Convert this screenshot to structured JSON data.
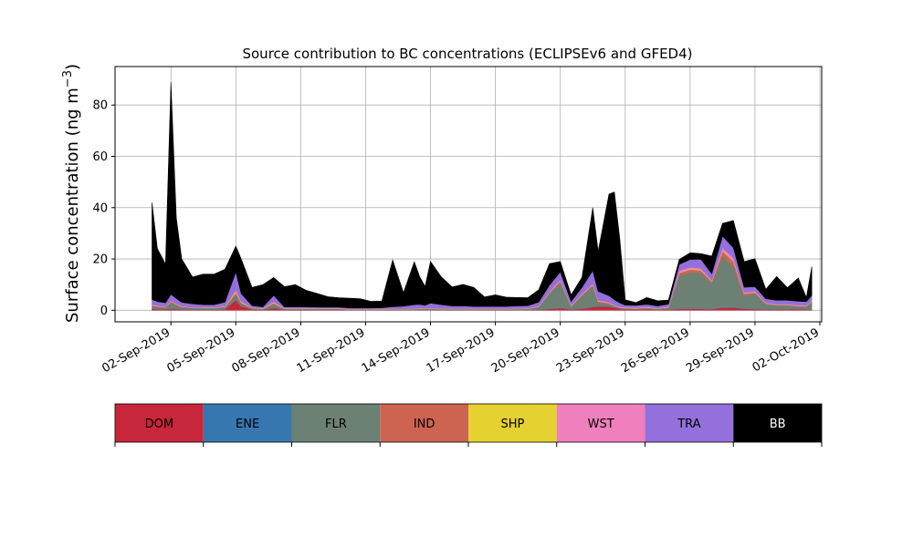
{
  "chart_data": {
    "type": "area",
    "stacked": true,
    "title": "Source contribution to BC concentrations (ECLIPSEv6 and GFED4)",
    "ylabel": "Surface concentration (ng m",
    "ylabel_superscript": "−3",
    "ylabel_close": ")",
    "xlabel": "",
    "xlim": [
      "2019-08-30T10:00",
      "2019-10-02T02:00"
    ],
    "ylim": [
      -4.5,
      95
    ],
    "xtick_values": [
      "2019-09-02",
      "2019-09-05",
      "2019-09-08",
      "2019-09-11",
      "2019-09-14",
      "2019-09-17",
      "2019-09-20",
      "2019-09-23",
      "2019-09-26",
      "2019-09-29",
      "2019-10-02"
    ],
    "xticks": [
      "02-Sep-2019",
      "05-Sep-2019",
      "08-Sep-2019",
      "11-Sep-2019",
      "14-Sep-2019",
      "17-Sep-2019",
      "20-Sep-2019",
      "23-Sep-2019",
      "26-Sep-2019",
      "29-Sep-2019",
      "02-Oct-2019"
    ],
    "yticks": [
      0,
      20,
      40,
      60,
      80
    ],
    "grid": true,
    "x": [
      "2019-09-01T03:00",
      "2019-09-01T09:00",
      "2019-09-01T18:00",
      "2019-09-02T00:00",
      "2019-09-02T06:00",
      "2019-09-02T12:00",
      "2019-09-03T00:00",
      "2019-09-03T12:00",
      "2019-09-04T00:00",
      "2019-09-04T12:00",
      "2019-09-05T00:00",
      "2019-09-05T06:00",
      "2019-09-05T18:00",
      "2019-09-06T06:00",
      "2019-09-06T18:00",
      "2019-09-07T06:00",
      "2019-09-07T18:00",
      "2019-09-08T06:00",
      "2019-09-08T18:00",
      "2019-09-09T06:00",
      "2019-09-09T18:00",
      "2019-09-10T06:00",
      "2019-09-10T18:00",
      "2019-09-11T06:00",
      "2019-09-11T18:00",
      "2019-09-12T06:00",
      "2019-09-12T18:00",
      "2019-09-13T06:00",
      "2019-09-13T12:00",
      "2019-09-13T18:00",
      "2019-09-14T00:00",
      "2019-09-14T12:00",
      "2019-09-15T00:00",
      "2019-09-15T12:00",
      "2019-09-16T00:00",
      "2019-09-16T12:00",
      "2019-09-17T00:00",
      "2019-09-17T12:00",
      "2019-09-18T00:00",
      "2019-09-18T12:00",
      "2019-09-19T00:00",
      "2019-09-19T12:00",
      "2019-09-20T00:00",
      "2019-09-20T12:00",
      "2019-09-21T00:00",
      "2019-09-21T12:00",
      "2019-09-21T18:00",
      "2019-09-22T06:00",
      "2019-09-22T12:00",
      "2019-09-22T18:00",
      "2019-09-23T00:00",
      "2019-09-23T12:00",
      "2019-09-24T00:00",
      "2019-09-24T12:00",
      "2019-09-25T00:00",
      "2019-09-25T12:00",
      "2019-09-26T00:00",
      "2019-09-26T12:00",
      "2019-09-27T00:00",
      "2019-09-27T12:00",
      "2019-09-28T00:00",
      "2019-09-28T12:00",
      "2019-09-29T00:00",
      "2019-09-29T12:00",
      "2019-09-30T00:00",
      "2019-09-30T12:00",
      "2019-10-01T00:00",
      "2019-10-01T09:00",
      "2019-10-01T15:00"
    ],
    "series": [
      {
        "name": "DOM",
        "color": "#c8263a",
        "values": [
          0.5,
          0.4,
          0.3,
          0.5,
          0.4,
          0.3,
          0.2,
          0.2,
          0.2,
          0.3,
          4.0,
          1.5,
          0.3,
          0.2,
          0.8,
          0.2,
          0.2,
          0.2,
          0.2,
          0.2,
          0.2,
          0.1,
          0.1,
          0.1,
          0.1,
          0.1,
          0.1,
          0.1,
          0.1,
          0.1,
          0.1,
          0.1,
          0.1,
          0.1,
          0.1,
          0.1,
          0.1,
          0.1,
          0.1,
          0.1,
          0.2,
          0.5,
          0.8,
          0.3,
          0.6,
          1.2,
          1.5,
          1.4,
          1.0,
          0.5,
          0.3,
          0.3,
          0.4,
          0.2,
          0.3,
          0.5,
          0.6,
          0.5,
          0.4,
          1.0,
          1.0,
          0.6,
          0.4,
          0.3,
          0.3,
          0.3,
          0.4,
          0.3,
          0.2
        ]
      },
      {
        "name": "ENE",
        "color": "#3777b0",
        "values": [
          0.1,
          0.1,
          0.1,
          0.1,
          0.1,
          0.1,
          0.1,
          0.1,
          0.1,
          0.1,
          0.1,
          0.1,
          0.1,
          0.1,
          0.1,
          0.1,
          0.1,
          0.1,
          0.1,
          0.1,
          0.1,
          0.1,
          0.1,
          0.1,
          0.1,
          0.1,
          0.1,
          0.1,
          0.1,
          0.1,
          0.1,
          0.1,
          0.1,
          0.1,
          0.1,
          0.1,
          0.1,
          0.1,
          0.1,
          0.1,
          0.1,
          0.1,
          0.1,
          0.1,
          0.1,
          0.1,
          0.1,
          0.1,
          0.1,
          0.1,
          0.1,
          0.1,
          0.1,
          0.1,
          0.1,
          0.1,
          0.1,
          0.1,
          0.1,
          0.1,
          0.1,
          0.1,
          0.1,
          0.1,
          0.1,
          0.1,
          0.1,
          0.1,
          0.1
        ]
      },
      {
        "name": "FLR",
        "color": "#6c8173",
        "values": [
          1.0,
          0.8,
          0.6,
          2.5,
          1.5,
          0.8,
          0.6,
          0.5,
          0.5,
          0.8,
          2.0,
          1.0,
          0.3,
          0.2,
          1.5,
          0.2,
          0.2,
          0.2,
          0.2,
          0.2,
          0.2,
          0.1,
          0.1,
          0.1,
          0.1,
          0.2,
          0.1,
          0.2,
          0.3,
          0.4,
          0.3,
          0.2,
          0.2,
          0.2,
          0.2,
          0.2,
          0.2,
          0.2,
          0.2,
          0.3,
          1.0,
          6.0,
          10.0,
          1.0,
          5.0,
          8.0,
          1.5,
          1.0,
          0.5,
          0.3,
          0.3,
          0.2,
          0.3,
          0.3,
          0.5,
          13.0,
          14.0,
          14.0,
          10.0,
          20.0,
          16.0,
          5.0,
          6.0,
          2.0,
          1.5,
          1.5,
          1.0,
          1.0,
          3.0
        ]
      },
      {
        "name": "IND",
        "color": "#cd6452",
        "values": [
          0.3,
          0.3,
          0.2,
          0.3,
          0.3,
          0.2,
          0.2,
          0.2,
          0.2,
          0.2,
          0.8,
          0.4,
          0.2,
          0.1,
          0.4,
          0.1,
          0.1,
          0.1,
          0.1,
          0.1,
          0.1,
          0.1,
          0.1,
          0.1,
          0.1,
          0.1,
          0.1,
          0.1,
          0.1,
          0.1,
          0.1,
          0.1,
          0.1,
          0.1,
          0.1,
          0.1,
          0.1,
          0.1,
          0.1,
          0.1,
          0.1,
          0.3,
          0.5,
          0.2,
          0.3,
          0.6,
          0.4,
          0.3,
          0.2,
          0.2,
          0.2,
          0.2,
          0.2,
          0.1,
          0.2,
          1.0,
          1.2,
          1.0,
          0.7,
          2.0,
          2.0,
          0.8,
          0.5,
          0.3,
          0.2,
          0.2,
          0.2,
          0.2,
          0.2
        ]
      },
      {
        "name": "SHP",
        "color": "#e5d12f",
        "values": [
          0.1,
          0.1,
          0.1,
          0.1,
          0.1,
          0.1,
          0.1,
          0.1,
          0.1,
          0.1,
          0.4,
          0.2,
          0.1,
          0.1,
          0.2,
          0.1,
          0.1,
          0.1,
          0.1,
          0.1,
          0.1,
          0.1,
          0.1,
          0.1,
          0.1,
          0.1,
          0.1,
          0.1,
          0.1,
          0.1,
          0.1,
          0.1,
          0.1,
          0.1,
          0.1,
          0.1,
          0.1,
          0.1,
          0.1,
          0.1,
          0.1,
          0.1,
          0.1,
          0.1,
          0.1,
          0.1,
          0.1,
          0.1,
          0.1,
          0.1,
          0.1,
          0.1,
          0.1,
          0.1,
          0.1,
          0.2,
          0.2,
          0.2,
          0.1,
          0.3,
          0.3,
          0.1,
          0.1,
          0.1,
          0.1,
          0.1,
          0.1,
          0.1,
          0.1
        ]
      },
      {
        "name": "WST",
        "color": "#f07fbd",
        "values": [
          0.2,
          0.2,
          0.1,
          0.2,
          0.2,
          0.1,
          0.1,
          0.1,
          0.1,
          0.2,
          0.6,
          0.3,
          0.1,
          0.1,
          0.3,
          0.1,
          0.1,
          0.1,
          0.1,
          0.1,
          0.1,
          0.1,
          0.1,
          0.1,
          0.1,
          0.1,
          0.1,
          0.1,
          0.1,
          0.1,
          0.1,
          0.1,
          0.1,
          0.1,
          0.1,
          0.1,
          0.1,
          0.1,
          0.1,
          0.1,
          0.2,
          0.3,
          0.5,
          0.2,
          0.3,
          0.5,
          0.3,
          0.3,
          0.2,
          0.2,
          0.2,
          0.2,
          0.2,
          0.1,
          0.2,
          0.6,
          0.7,
          0.6,
          0.4,
          1.0,
          1.0,
          0.4,
          0.3,
          0.2,
          0.2,
          0.2,
          0.2,
          0.2,
          0.2
        ]
      },
      {
        "name": "TRA",
        "color": "#9370db",
        "values": [
          2.0,
          1.5,
          1.5,
          2.5,
          2.0,
          1.5,
          1.2,
          1.0,
          1.0,
          1.5,
          7.0,
          3.0,
          0.7,
          0.5,
          2.5,
          0.5,
          0.5,
          0.5,
          0.4,
          0.4,
          0.4,
          0.3,
          0.3,
          0.3,
          0.4,
          0.7,
          1.0,
          1.5,
          1.5,
          1.0,
          2.0,
          1.5,
          1.0,
          1.0,
          0.8,
          0.8,
          0.8,
          0.8,
          1.0,
          1.0,
          1.5,
          2.5,
          3.0,
          1.5,
          2.5,
          5.0,
          3.5,
          2.5,
          2.0,
          1.5,
          0.8,
          0.8,
          1.0,
          0.8,
          1.0,
          2.5,
          3.0,
          3.5,
          2.5,
          4.5,
          4.0,
          2.0,
          1.8,
          1.5,
          1.5,
          1.5,
          1.5,
          1.5,
          2.0
        ]
      },
      {
        "name": "BB",
        "color": "#000000",
        "values": [
          37.8,
          20.6,
          15.1,
          82.8,
          31.4,
          16.9,
          10.5,
          11.9,
          11.9,
          12.8,
          10.1,
          13.5,
          7.1,
          8.7,
          7.0,
          7.9,
          8.7,
          6.5,
          5.4,
          4.1,
          3.7,
          3.8,
          3.6,
          2.6,
          2.6,
          18.2,
          5.3,
          16.7,
          10.8,
          7.4,
          16.2,
          10.8,
          7.4,
          8.4,
          7.4,
          3.7,
          4.5,
          3.6,
          3.3,
          3.1,
          4.8,
          8.4,
          4.0,
          2.6,
          3.9,
          24.5,
          15.6,
          39.6,
          42.0,
          24.9,
          2.1,
          1.1,
          2.7,
          2.0,
          1.6,
          1.9,
          2.6,
          2.2,
          6.9,
          5.0,
          10.6,
          10.0,
          10.9,
          3.7,
          9.3,
          4.9,
          9.1,
          1.6,
          11.2
        ]
      }
    ]
  }
}
